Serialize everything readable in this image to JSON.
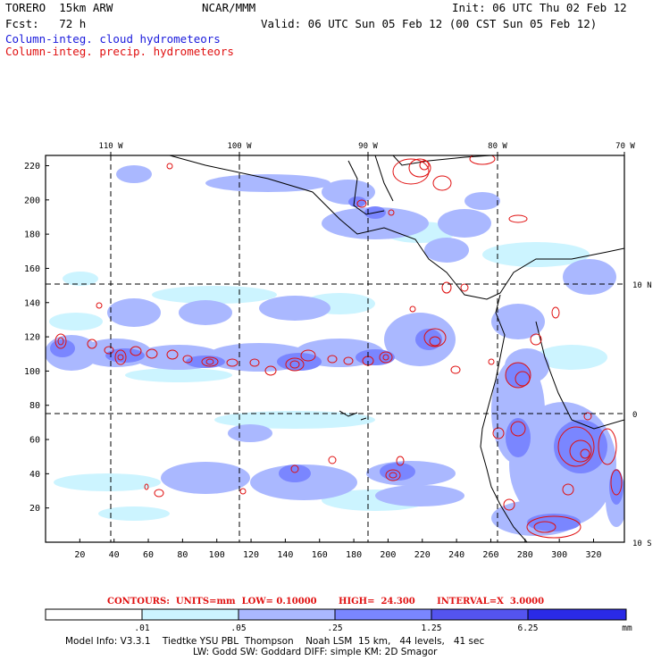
{
  "header": {
    "model": "TORERO  15km ARW",
    "org": "NCAR/MMM",
    "init": "Init: 06 UTC Thu 02 Feb 12",
    "fcst": "Fcst:   72 h",
    "valid": "Valid: 06 UTC Sun 05 Feb 12 (00 CST Sun 05 Feb 12)",
    "field1": "Column-integ. cloud hydrometeors",
    "field2": "Column-integ. precip. hydrometeors"
  },
  "colors": {
    "field1": "#1a1adc",
    "field2": "#e01010",
    "fill_levels": [
      "#ffffff",
      "#ccf4ff",
      "#aab8ff",
      "#7a86ff",
      "#5454f0",
      "#2a2ae6"
    ]
  },
  "map": {
    "lon_labels": [
      "110 W",
      "100 W",
      "90 W",
      "80 W",
      "70 W"
    ],
    "lat_labels": [
      "10 N",
      "0",
      "10 S"
    ],
    "y_ticks": [
      "20",
      "40",
      "60",
      "80",
      "100",
      "120",
      "140",
      "160",
      "180",
      "200",
      "220"
    ],
    "x_ticks": [
      "20",
      "40",
      "60",
      "80",
      "100",
      "120",
      "140",
      "160",
      "180",
      "200",
      "220",
      "240",
      "260",
      "280",
      "300",
      "320"
    ]
  },
  "contours_line": "CONTOURS:  UNITS=mm  LOW= 0.10000       HIGH=  24.300       INTERVAL=X  3.0000",
  "colorbar": {
    "labels": [
      ".01",
      ".05",
      ".25",
      "1.25",
      "6.25"
    ],
    "unit": "mm"
  },
  "footer": {
    "line1": "Model Info: V3.3.1    Tiedtke YSU PBL  Thompson    Noah LSM  15 km,   44 levels,   41 sec",
    "line2": "LW: Godd SW: Goddard DIFF: simple KM: 2D Smagor"
  }
}
